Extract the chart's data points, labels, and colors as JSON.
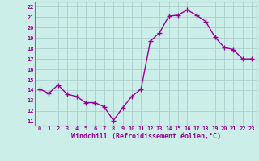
{
  "x": [
    0,
    1,
    2,
    3,
    4,
    5,
    6,
    7,
    8,
    9,
    10,
    11,
    12,
    13,
    14,
    15,
    16,
    17,
    18,
    19,
    20,
    21,
    22,
    23
  ],
  "y": [
    14.1,
    13.7,
    14.5,
    13.6,
    13.4,
    12.8,
    12.8,
    12.4,
    11.1,
    12.3,
    13.4,
    14.1,
    18.7,
    19.5,
    21.1,
    21.2,
    21.7,
    21.2,
    20.6,
    19.1,
    18.1,
    17.9,
    17.0,
    17.0
  ],
  "line_color": "#990099",
  "marker": "+",
  "markersize": 4,
  "linewidth": 1.0,
  "bg_color": "#cceee8",
  "grid_color": "#aacccc",
  "xlabel": "Windchill (Refroidissement éolien,°C)",
  "xlabel_color": "#990099",
  "tick_color": "#990099",
  "ylabel_ticks": [
    11,
    12,
    13,
    14,
    15,
    16,
    17,
    18,
    19,
    20,
    21,
    22
  ],
  "xlim": [
    -0.5,
    23.5
  ],
  "ylim": [
    10.6,
    22.5
  ],
  "spine_color": "#777799"
}
